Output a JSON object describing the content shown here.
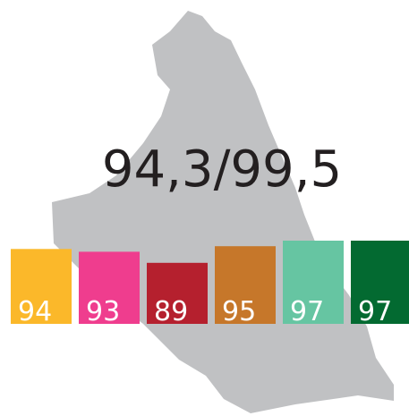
{
  "chart_data": {
    "type": "bar",
    "title": "94,3/99,5",
    "categories": [
      null,
      null,
      null,
      null,
      null,
      null
    ],
    "values": [
      94,
      93,
      89,
      95,
      97,
      97
    ],
    "colors": [
      "#fbb82a",
      "#ef3d8e",
      "#b5202e",
      "#c6772a",
      "#66c5a2",
      "#036a31"
    ],
    "ylim": [
      67,
      100
    ]
  }
}
